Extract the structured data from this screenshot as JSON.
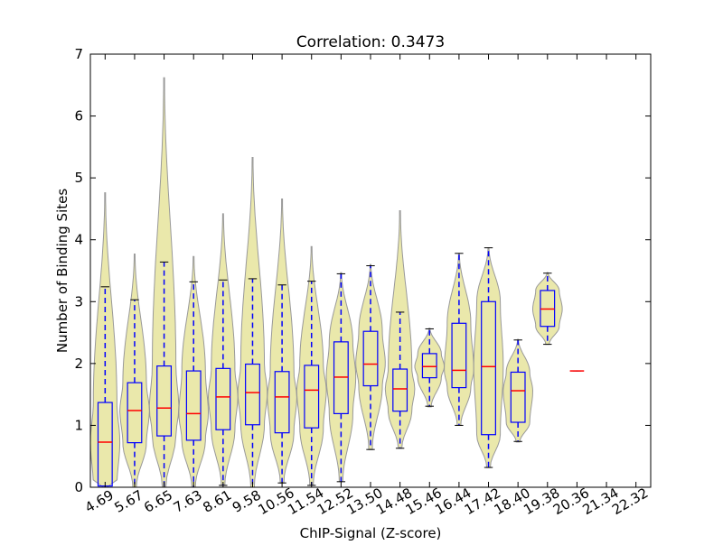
{
  "chart_data": {
    "type": "violin-box",
    "title": "Correlation: 0.3473",
    "x_label": "ChIP-Signal (Z-score)",
    "y_label": "Number of Binding Sites",
    "categories": [
      "4.69",
      "5.67",
      "6.65",
      "7.63",
      "8.61",
      "9.58",
      "10.56",
      "11.54",
      "12.52",
      "13.50",
      "14.48",
      "15.46",
      "16.44",
      "17.42",
      "18.40",
      "19.38",
      "20.36",
      "21.34",
      "22.32"
    ],
    "boxes": [
      {
        "min": 0,
        "whislo": 0,
        "q1": 0.02,
        "med": 0.73,
        "q3": 1.37,
        "whishi": 3.24,
        "max": 4.76
      },
      {
        "min": 0,
        "whislo": 0,
        "q1": 0.72,
        "med": 1.24,
        "q3": 1.69,
        "whishi": 3.03,
        "max": 3.77
      },
      {
        "min": 0,
        "whislo": 0,
        "q1": 0.83,
        "med": 1.28,
        "q3": 1.96,
        "whishi": 3.64,
        "max": 6.62
      },
      {
        "min": 0,
        "whislo": 0,
        "q1": 0.76,
        "med": 1.19,
        "q3": 1.88,
        "whishi": 3.32,
        "max": 3.73
      },
      {
        "min": 0.03,
        "whislo": 0.03,
        "q1": 0.93,
        "med": 1.46,
        "q3": 1.92,
        "whishi": 3.35,
        "max": 4.42
      },
      {
        "min": 0,
        "whislo": 0,
        "q1": 1.01,
        "med": 1.53,
        "q3": 1.99,
        "whishi": 3.37,
        "max": 5.33
      },
      {
        "min": 0.07,
        "whislo": 0.07,
        "q1": 0.88,
        "med": 1.46,
        "q3": 1.87,
        "whishi": 3.27,
        "max": 4.66
      },
      {
        "min": 0.03,
        "whislo": 0.03,
        "q1": 0.96,
        "med": 1.57,
        "q3": 1.97,
        "whishi": 3.33,
        "max": 3.89
      },
      {
        "min": 0.09,
        "whislo": 0.09,
        "q1": 1.19,
        "med": 1.78,
        "q3": 2.35,
        "whishi": 3.45,
        "max": 3.47
      },
      {
        "min": 0.61,
        "whislo": 0.61,
        "q1": 1.64,
        "med": 1.99,
        "q3": 2.52,
        "whishi": 3.58,
        "max": 3.6
      },
      {
        "min": 0.63,
        "whislo": 0.63,
        "q1": 1.23,
        "med": 1.59,
        "q3": 1.91,
        "whishi": 2.83,
        "max": 4.47
      },
      {
        "min": 1.3,
        "whislo": 1.31,
        "q1": 1.77,
        "med": 1.95,
        "q3": 2.16,
        "whishi": 2.56,
        "max": 2.57
      },
      {
        "min": 1.0,
        "whislo": 1.0,
        "q1": 1.61,
        "med": 1.89,
        "q3": 2.65,
        "whishi": 3.78,
        "max": 3.78
      },
      {
        "min": 0.32,
        "whislo": 0.32,
        "q1": 0.85,
        "med": 1.95,
        "q3": 3.0,
        "whishi": 3.87,
        "max": 3.87
      },
      {
        "min": 0.73,
        "whislo": 0.74,
        "q1": 1.05,
        "med": 1.56,
        "q3": 1.86,
        "whishi": 2.38,
        "max": 2.39
      },
      {
        "min": 2.31,
        "whislo": 2.31,
        "q1": 2.6,
        "med": 2.88,
        "q3": 3.18,
        "whishi": 3.46,
        "max": 3.47
      },
      {
        "min": 1.88,
        "whislo": 1.88,
        "q1": 1.88,
        "med": 1.88,
        "q3": 1.88,
        "whishi": 1.88,
        "max": 1.88
      },
      null,
      null
    ],
    "ylim": [
      0,
      7
    ],
    "yticks": [
      0,
      1,
      2,
      3,
      4,
      5,
      6,
      7
    ],
    "violin_color": "#e6e49c",
    "box_color": "#0000ff",
    "median_color": "#ff0000",
    "cap_color": "#000000"
  }
}
